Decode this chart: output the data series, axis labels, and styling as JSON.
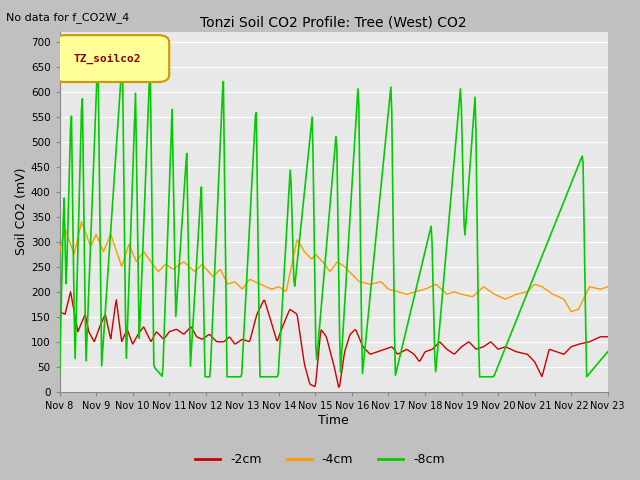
{
  "title": "Tonzi Soil CO2 Profile: Tree (West) CO2",
  "top_left_note": "No data for f_CO2W_4",
  "legend_box_label": "TZ_soilco2",
  "ylabel": "Soil CO2 (mV)",
  "xlabel": "Time",
  "ylim": [
    0,
    720
  ],
  "xlim": [
    0,
    15
  ],
  "xtick_labels": [
    "Nov 8",
    "Nov 9",
    "Nov 10",
    "Nov 11",
    "Nov 12",
    "Nov 13",
    "Nov 14",
    "Nov 15",
    "Nov 16",
    "Nov 17",
    "Nov 18",
    "Nov 19",
    "Nov 20",
    "Nov 21",
    "Nov 22",
    "Nov 23"
  ],
  "xtick_positions": [
    0,
    1,
    2,
    3,
    4,
    5,
    6,
    7,
    8,
    9,
    10,
    11,
    12,
    13,
    14,
    15
  ],
  "ytick_labels": [
    "0",
    "50",
    "100",
    "150",
    "200",
    "250",
    "300",
    "350",
    "400",
    "450",
    "500",
    "550",
    "600",
    "650",
    "700"
  ],
  "ytick_positions": [
    0,
    50,
    100,
    150,
    200,
    250,
    300,
    350,
    400,
    450,
    500,
    550,
    600,
    650,
    700
  ],
  "line_colors": [
    "#cc0000",
    "#ff9900",
    "#00cc00"
  ],
  "line_labels": [
    "-2cm",
    "-4cm",
    "-8cm"
  ],
  "fig_bg_color": "#c0c0c0",
  "plot_bg_color": "#e8e8e8",
  "legend_bg": "#ffff99",
  "legend_border": "#cc9900",
  "grid_color": "#ffffff"
}
